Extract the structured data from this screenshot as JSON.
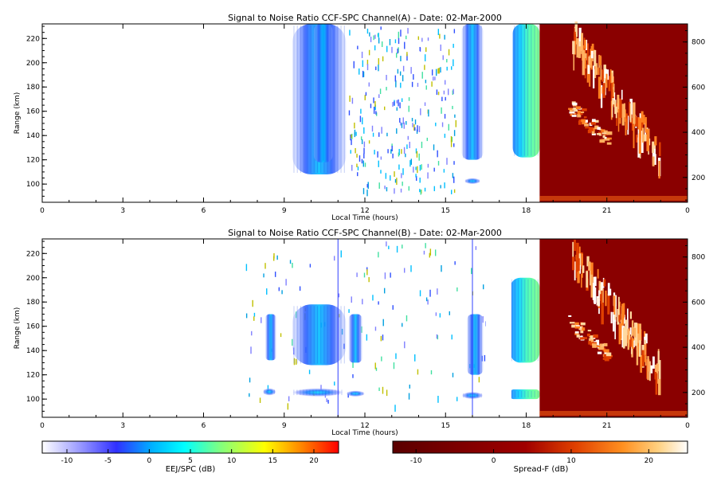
{
  "chart_data": [
    {
      "type": "heatmap",
      "title": "Signal to Noise Ratio CCF-SPC Channel(A) - Date: 02-Mar-2000",
      "xlabel": "Local Time (hours)",
      "ylabel": "Range (km)",
      "xlim": [
        0,
        24
      ],
      "xticks": [
        "0",
        "3",
        "6",
        "9",
        "12",
        "15",
        "18",
        "21",
        "0"
      ],
      "ylim": [
        85,
        232
      ],
      "yticks": [
        100,
        120,
        140,
        160,
        180,
        200,
        220
      ],
      "right_ylim": [
        90,
        880
      ],
      "right_yticks": [
        200,
        400,
        600,
        800
      ],
      "ejj_blobs": [
        {
          "x0": 9.3,
          "x1": 11.3,
          "y0": 108,
          "y1": 232,
          "intensity": 0.42
        },
        {
          "x0": 10.1,
          "x1": 10.8,
          "y0": 118,
          "y1": 232,
          "intensity": 0.52
        },
        {
          "x0": 15.6,
          "x1": 16.4,
          "y0": 120,
          "y1": 232,
          "intensity": 0.48
        },
        {
          "x0": 17.5,
          "x1": 18.5,
          "y0": 122,
          "y1": 232,
          "intensity": 0.55
        },
        {
          "x0": 15.7,
          "x1": 16.3,
          "y0": 100,
          "y1": 105,
          "intensity": 0.45
        }
      ],
      "spread_f": {
        "x0": 18.5,
        "x1": 24
      }
    },
    {
      "type": "heatmap",
      "title": "Signal to Noise Ratio CCF-SPC Channel(B) - Date: 02-Mar-2000",
      "xlabel": "Local Time (hours)",
      "ylabel": "Range (km)",
      "xlim": [
        0,
        24
      ],
      "xticks": [
        "0",
        "3",
        "6",
        "9",
        "12",
        "15",
        "18",
        "21",
        "0"
      ],
      "ylim": [
        85,
        232
      ],
      "yticks": [
        100,
        120,
        140,
        160,
        180,
        200,
        220
      ],
      "right_ylim": [
        90,
        880
      ],
      "right_yticks": [
        200,
        400,
        600,
        800
      ],
      "ejj_blobs": [
        {
          "x0": 8.3,
          "x1": 8.7,
          "y0": 132,
          "y1": 170,
          "intensity": 0.38
        },
        {
          "x0": 9.3,
          "x1": 11.3,
          "y0": 128,
          "y1": 178,
          "intensity": 0.45
        },
        {
          "x0": 11.4,
          "x1": 11.9,
          "y0": 130,
          "y1": 170,
          "intensity": 0.4
        },
        {
          "x0": 8.2,
          "x1": 8.7,
          "y0": 103,
          "y1": 109,
          "intensity": 0.42
        },
        {
          "x0": 9.3,
          "x1": 11.2,
          "y0": 102,
          "y1": 109,
          "intensity": 0.45
        },
        {
          "x0": 11.3,
          "x1": 12.0,
          "y0": 102,
          "y1": 107,
          "intensity": 0.42
        },
        {
          "x0": 15.8,
          "x1": 16.4,
          "y0": 120,
          "y1": 170,
          "intensity": 0.45
        },
        {
          "x0": 17.4,
          "x1": 18.5,
          "y0": 130,
          "y1": 200,
          "intensity": 0.48
        },
        {
          "x0": 15.6,
          "x1": 16.4,
          "y0": 100,
          "y1": 106,
          "intensity": 0.48
        },
        {
          "x0": 17.4,
          "x1": 18.5,
          "y0": 100,
          "y1": 108,
          "intensity": 0.52
        }
      ],
      "vlines": [
        11.0,
        16.0
      ],
      "spread_f": {
        "x0": 18.5,
        "x1": 24
      }
    }
  ],
  "colorbars": {
    "ejj": {
      "label": "EEJ/SPC (dB)",
      "range": [
        -13,
        23
      ],
      "ticks": [
        "-10",
        "-5",
        "0",
        "5",
        "10",
        "15",
        "20"
      ],
      "colors": [
        "#ffffff",
        "#a0a0ff",
        "#3030ff",
        "#00b0ff",
        "#00ffff",
        "#80ff80",
        "#ffff00",
        "#ff8000",
        "#ff0000"
      ]
    },
    "spread": {
      "label": "Spread-F (dB)",
      "range": [
        -13,
        25
      ],
      "ticks": [
        "-10",
        "0",
        "10",
        "20"
      ],
      "colors": [
        "#5a0000",
        "#a00000",
        "#e04000",
        "#ff9020",
        "#ffd080",
        "#ffffff"
      ]
    }
  }
}
